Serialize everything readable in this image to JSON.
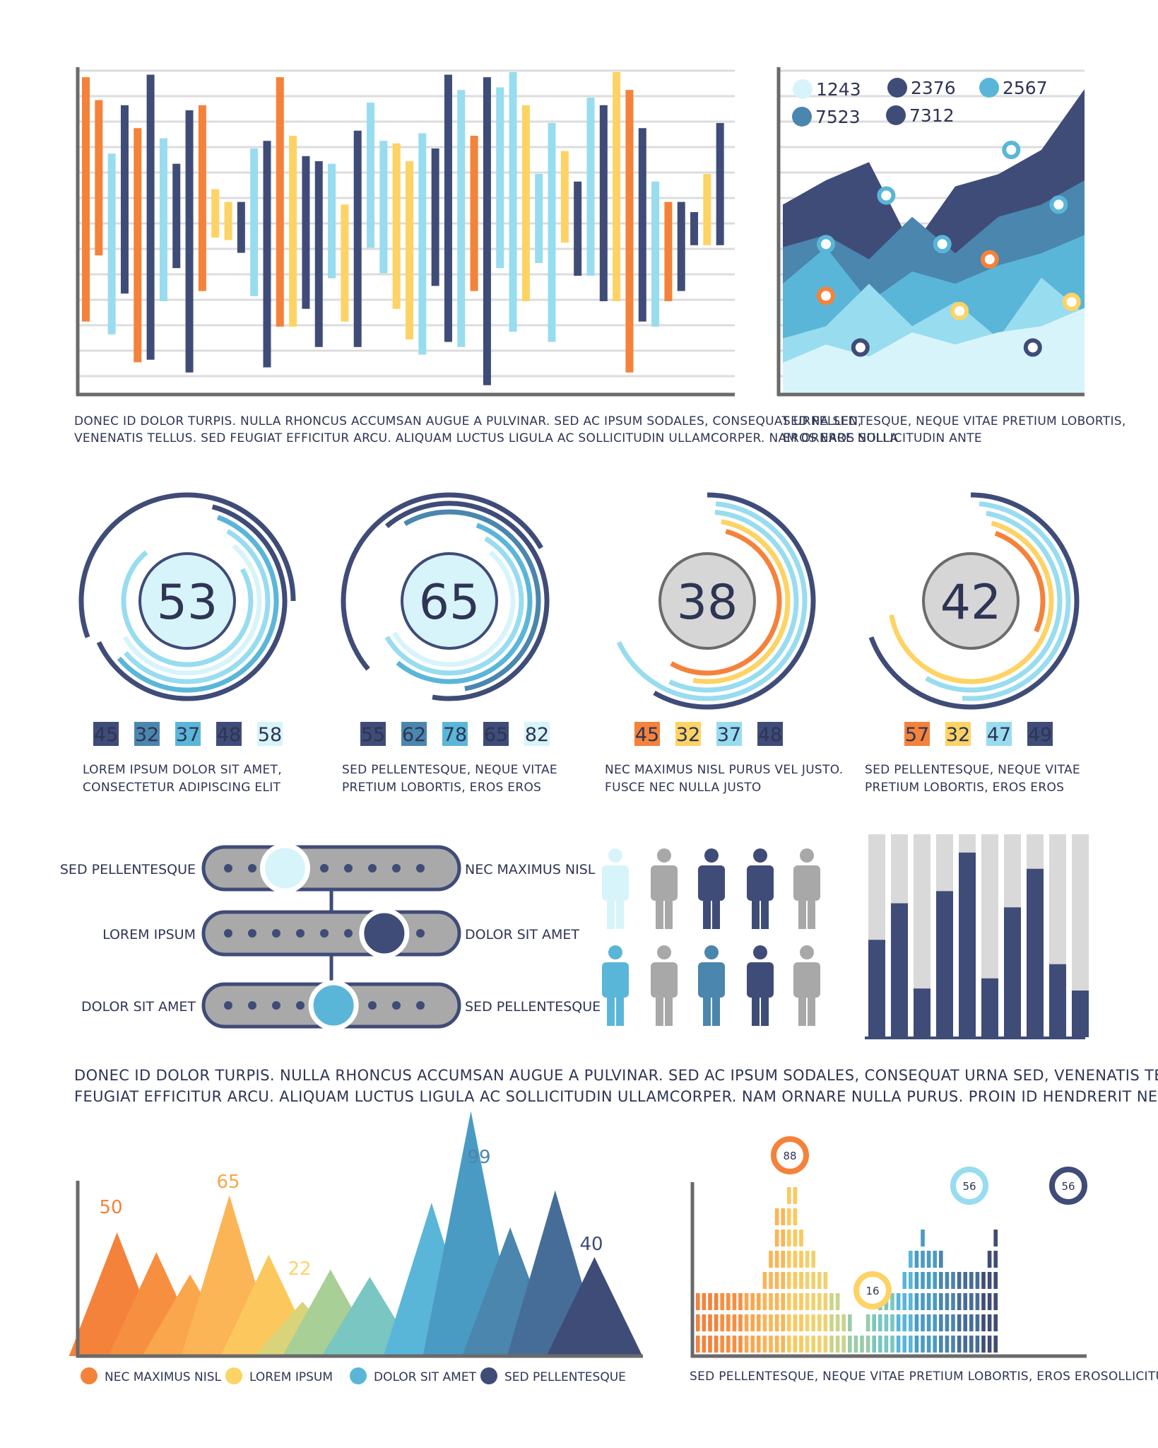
{
  "colors": {
    "navy": "#3f4c78",
    "orange": "#f4823a",
    "yellow": "#fdd365",
    "light_blue": "#98dcef",
    "mid_blue": "#5ab6d8",
    "steel_blue": "#4a86ad",
    "pale": "#d8f4fb",
    "gray": "#b4b4b4",
    "dark_axis": "#6a6a6a"
  },
  "captions": {
    "top_left": [
      "DONEC ID DOLOR TURPIS. NULLA RHONCUS ACCUMSAN AUGUE A PULVINAR. SED AC IPSUM SODALES, CONSEQUAT URNA SED,",
      "VENENATIS TELLUS. SED FEUGIAT EFFICITUR ARCU. ALIQUAM LUCTUS LIGULA AC SOLLICITUDIN ULLAMCORPER. NAM ORNARE NULLA"
    ],
    "top_right": [
      "SED PELLENTESQUE, NEQUE VITAE PRETIUM LOBORTIS,",
      "EROS EROS SOLLICITUDIN ANTE"
    ],
    "middle": [
      "DONEC ID DOLOR TURPIS. NULLA RHONCUS ACCUMSAN AUGUE A PULVINAR. SED AC IPSUM SODALES, CONSEQUAT URNA SED, VENENATIS TELLUS. SED",
      "FEUGIAT EFFICITUR ARCU. ALIQUAM LUCTUS LIGULA AC SOLLICITUDIN ULLAMCORPER. NAM ORNARE NULLA PURUS. PROIN ID HENDRERIT NEQUE, QUIS"
    ],
    "bottom_right": "SED PELLENTESQUE, NEQUE VITAE PRETIUM LOBORTIS, EROS EROSOLLICITUD"
  },
  "chart_data": [
    {
      "id": "diverging-bars",
      "type": "bar",
      "description": "diverging up/down bars, values relative to center baseline",
      "colors_cycle": [
        "orange",
        "light_blue",
        "navy",
        "yellow"
      ],
      "values": [
        {
          "up": 58,
          "down": -38,
          "color": "orange"
        },
        {
          "up": 49,
          "down": -12,
          "color": "orange"
        },
        {
          "up": 28,
          "down": -43,
          "color": "light_blue"
        },
        {
          "up": 47,
          "down": -27,
          "color": "navy"
        },
        {
          "up": 38,
          "down": -54,
          "color": "orange"
        },
        {
          "up": 59,
          "down": -53,
          "color": "navy"
        },
        {
          "up": 34,
          "down": -30,
          "color": "light_blue"
        },
        {
          "up": 24,
          "down": -17,
          "color": "navy"
        },
        {
          "up": 45,
          "down": -58,
          "color": "navy"
        },
        {
          "up": 47,
          "down": -26,
          "color": "orange"
        },
        {
          "up": 14,
          "down": -5,
          "color": "yellow"
        },
        {
          "up": 9,
          "down": -6,
          "color": "yellow"
        },
        {
          "up": 9,
          "down": -11,
          "color": "navy"
        },
        {
          "up": 30,
          "down": -28,
          "color": "light_blue"
        },
        {
          "up": 33,
          "down": -56,
          "color": "navy"
        },
        {
          "up": 58,
          "down": -40,
          "color": "orange"
        },
        {
          "up": 35,
          "down": -40,
          "color": "yellow"
        },
        {
          "up": 27,
          "down": -33,
          "color": "navy"
        },
        {
          "up": 25,
          "down": -48,
          "color": "navy"
        },
        {
          "up": 24,
          "down": -21,
          "color": "light_blue"
        },
        {
          "up": 8,
          "down": -38,
          "color": "yellow"
        },
        {
          "up": 37,
          "down": -48,
          "color": "navy"
        },
        {
          "up": 48,
          "down": -9,
          "color": "light_blue"
        },
        {
          "up": 33,
          "down": -19,
          "color": "light_blue"
        },
        {
          "up": 32,
          "down": -33,
          "color": "yellow"
        },
        {
          "up": 25,
          "down": -45,
          "color": "yellow"
        },
        {
          "up": 36,
          "down": -51,
          "color": "light_blue"
        },
        {
          "up": 30,
          "down": -24,
          "color": "navy"
        },
        {
          "up": 59,
          "down": -46,
          "color": "navy"
        },
        {
          "up": 53,
          "down": -48,
          "color": "light_blue"
        },
        {
          "up": 35,
          "down": -26,
          "color": "orange"
        },
        {
          "up": 58,
          "down": -63,
          "color": "navy"
        },
        {
          "up": 54,
          "down": -17,
          "color": "light_blue"
        },
        {
          "up": 60,
          "down": -42,
          "color": "light_blue"
        },
        {
          "up": 47,
          "down": -30,
          "color": "yellow"
        },
        {
          "up": 20,
          "down": -15,
          "color": "light_blue"
        },
        {
          "up": 40,
          "down": -46,
          "color": "light_blue"
        },
        {
          "up": 29,
          "down": -7,
          "color": "yellow"
        },
        {
          "up": 17,
          "down": -20,
          "color": "navy"
        },
        {
          "up": 50,
          "down": -20,
          "color": "light_blue"
        },
        {
          "up": 47,
          "down": -30,
          "color": "navy"
        },
        {
          "up": 60,
          "down": -30,
          "color": "yellow"
        },
        {
          "up": 53,
          "down": -58,
          "color": "orange"
        },
        {
          "up": 38,
          "down": -38,
          "color": "navy"
        },
        {
          "up": 17,
          "down": -40,
          "color": "light_blue"
        },
        {
          "up": 9,
          "down": -30,
          "color": "orange"
        },
        {
          "up": 9,
          "down": -26,
          "color": "navy"
        },
        {
          "up": 5,
          "down": -8,
          "color": "navy"
        },
        {
          "up": 20,
          "down": -8,
          "color": "yellow"
        },
        {
          "up": 40,
          "down": -8,
          "color": "navy"
        }
      ]
    },
    {
      "id": "area-chart",
      "type": "area",
      "legend": [
        {
          "label": "1243",
          "color": "pale"
        },
        {
          "label": "2376",
          "color": "navy"
        },
        {
          "label": "2567",
          "color": "mid_blue"
        },
        {
          "label": "7523",
          "color": "steel_blue"
        },
        {
          "label": "7312",
          "color": "navy"
        }
      ],
      "x": [
        0,
        1,
        2,
        3,
        4,
        5,
        6,
        7
      ],
      "series": [
        {
          "color": "navy",
          "values": [
            62,
            70,
            76,
            48,
            68,
            72,
            80,
            100
          ]
        },
        {
          "color": "steel_blue",
          "values": [
            48,
            52,
            44,
            58,
            46,
            58,
            62,
            70
          ]
        },
        {
          "color": "mid_blue",
          "values": [
            36,
            48,
            30,
            40,
            36,
            42,
            46,
            52
          ]
        },
        {
          "color": "light_blue",
          "values": [
            18,
            22,
            36,
            22,
            30,
            18,
            38,
            26
          ]
        },
        {
          "color": "pale",
          "values": [
            10,
            16,
            12,
            20,
            16,
            20,
            22,
            28
          ]
        }
      ],
      "markers": [
        {
          "x": 1,
          "y": 49,
          "color": "mid_blue"
        },
        {
          "x": 2.4,
          "y": 65,
          "color": "mid_blue"
        },
        {
          "x": 3.7,
          "y": 49,
          "color": "mid_blue"
        },
        {
          "x": 5.3,
          "y": 80,
          "color": "mid_blue"
        },
        {
          "x": 6.4,
          "y": 62,
          "color": "mid_blue"
        },
        {
          "x": 1,
          "y": 32,
          "color": "orange"
        },
        {
          "x": 4.8,
          "y": 44,
          "color": "orange"
        },
        {
          "x": 1.8,
          "y": 15,
          "color": "navy"
        },
        {
          "x": 5.8,
          "y": 15,
          "color": "navy"
        },
        {
          "x": 4.1,
          "y": 27,
          "color": "yellow"
        },
        {
          "x": 6.7,
          "y": 30,
          "color": "yellow"
        }
      ]
    },
    {
      "id": "radial-gauges",
      "type": "radial",
      "gauges": [
        {
          "value": "53",
          "center_fill": "pale",
          "badges": [
            {
              "v": "45",
              "c": "navy"
            },
            {
              "v": "32",
              "c": "steel_blue"
            },
            {
              "v": "37",
              "c": "mid_blue"
            },
            {
              "v": "48",
              "c": "navy"
            },
            {
              "v": "58",
              "c": "pale"
            }
          ],
          "caption": [
            "LOREM  IPSUM  DOLOR  SIT  AMET,",
            "CONSECTETUR ADIPISCING ELIT"
          ]
        },
        {
          "value": "65",
          "center_fill": "pale",
          "badges": [
            {
              "v": "55",
              "c": "navy"
            },
            {
              "v": "62",
              "c": "steel_blue"
            },
            {
              "v": "78",
              "c": "mid_blue"
            },
            {
              "v": "65",
              "c": "navy"
            },
            {
              "v": "82",
              "c": "pale"
            }
          ],
          "caption": [
            "SED  PELLENTESQUE,  NEQUE  VITAE",
            "PRETIUM LOBORTIS, EROS EROS"
          ]
        },
        {
          "value": "38",
          "center_fill": "gray",
          "badges": [
            {
              "v": "45",
              "c": "orange"
            },
            {
              "v": "32",
              "c": "yellow"
            },
            {
              "v": "37",
              "c": "light_blue"
            },
            {
              "v": "48",
              "c": "navy"
            }
          ],
          "caption": [
            "NEC MAXIMUS NISL PURUS VEL JUSTO.",
            "FUSCE NEC NULLA JUSTO"
          ]
        },
        {
          "value": "42",
          "center_fill": "gray",
          "badges": [
            {
              "v": "57",
              "c": "orange"
            },
            {
              "v": "32",
              "c": "yellow"
            },
            {
              "v": "47",
              "c": "light_blue"
            },
            {
              "v": "49",
              "c": "navy"
            }
          ],
          "caption": [
            "SED  PELLENTESQUE,  NEQUE  VITAE",
            "PRETIUM LOBORTIS, EROS EROS"
          ]
        }
      ]
    },
    {
      "id": "sliders",
      "type": "table",
      "rows": [
        {
          "left": "SED PELLENTESQUE",
          "right": "NEC MAXIMUS NISL",
          "position": 0.29,
          "knob": "pale"
        },
        {
          "left": "LOREM IPSUM",
          "right": "DOLOR SIT AMET",
          "position": 0.74,
          "knob": "navy"
        },
        {
          "left": "DOLOR SIT AMET",
          "right": "SED PELLENTESQUE",
          "position": 0.51,
          "knob": "mid_blue"
        }
      ]
    },
    {
      "id": "people",
      "type": "table",
      "rows": [
        [
          "pale",
          "gray",
          "navy",
          "navy",
          "gray"
        ],
        [
          "mid_blue",
          "gray",
          "steel_blue",
          "navy",
          "gray"
        ]
      ]
    },
    {
      "id": "vertical-bars",
      "type": "bar",
      "values": [
        48,
        66,
        24,
        72,
        91,
        29,
        64,
        83,
        36,
        23
      ],
      "ylim": [
        0,
        100
      ]
    },
    {
      "id": "triangles",
      "type": "area",
      "labels": [
        {
          "text": "50",
          "color": "orange"
        },
        {
          "text": "65",
          "color": "#f6a54c"
        },
        {
          "text": "22",
          "color": "yellow"
        },
        {
          "text": "99",
          "color": "steel_blue"
        },
        {
          "text": "40",
          "color": "navy"
        }
      ],
      "peaks": [
        {
          "x": 0.07,
          "h": 50,
          "color": "#f4823a"
        },
        {
          "x": 0.14,
          "h": 42,
          "color": "#f68f40"
        },
        {
          "x": 0.2,
          "h": 33,
          "color": "#f9a64c"
        },
        {
          "x": 0.27,
          "h": 65,
          "color": "#fbb456"
        },
        {
          "x": 0.34,
          "h": 41,
          "color": "#fcc85d"
        },
        {
          "x": 0.4,
          "h": 22,
          "color": "#d9d47a"
        },
        {
          "x": 0.45,
          "h": 35,
          "color": "#a8cf96"
        },
        {
          "x": 0.52,
          "h": 32,
          "color": "#79c6c2"
        },
        {
          "x": 0.63,
          "h": 62,
          "color": "#5ab6d8"
        },
        {
          "x": 0.7,
          "h": 99,
          "color": "#4a9bc4"
        },
        {
          "x": 0.77,
          "h": 52,
          "color": "#4a86ad"
        },
        {
          "x": 0.85,
          "h": 67,
          "color": "#466d98"
        },
        {
          "x": 0.92,
          "h": 40,
          "color": "#3f4c78"
        }
      ],
      "legend": [
        {
          "label": "NEC MAXIMUS NISL",
          "color": "orange"
        },
        {
          "label": "LOREM IPSUM",
          "color": "yellow"
        },
        {
          "label": "DOLOR SIT AMET",
          "color": "mid_blue"
        },
        {
          "label": "SED PELLENTESQUE",
          "color": "navy"
        }
      ]
    },
    {
      "id": "stacked-blocks",
      "type": "bar",
      "columns": [
        3,
        3,
        3,
        3,
        3,
        3,
        3,
        3,
        3,
        3,
        3,
        4,
        5,
        7,
        7,
        8,
        8,
        6,
        5,
        5,
        4,
        4,
        3,
        3,
        2,
        2,
        1,
        1,
        2,
        2,
        3,
        3,
        3,
        3,
        4,
        5,
        5,
        6,
        5,
        5,
        5,
        4,
        4,
        4,
        4,
        4,
        4,
        4,
        5,
        6
      ],
      "badges": [
        {
          "value": "88",
          "color": "orange"
        },
        {
          "value": "16",
          "color": "yellow"
        },
        {
          "value": "56",
          "color": "light_blue"
        },
        {
          "value": "56",
          "color": "navy"
        }
      ]
    }
  ]
}
